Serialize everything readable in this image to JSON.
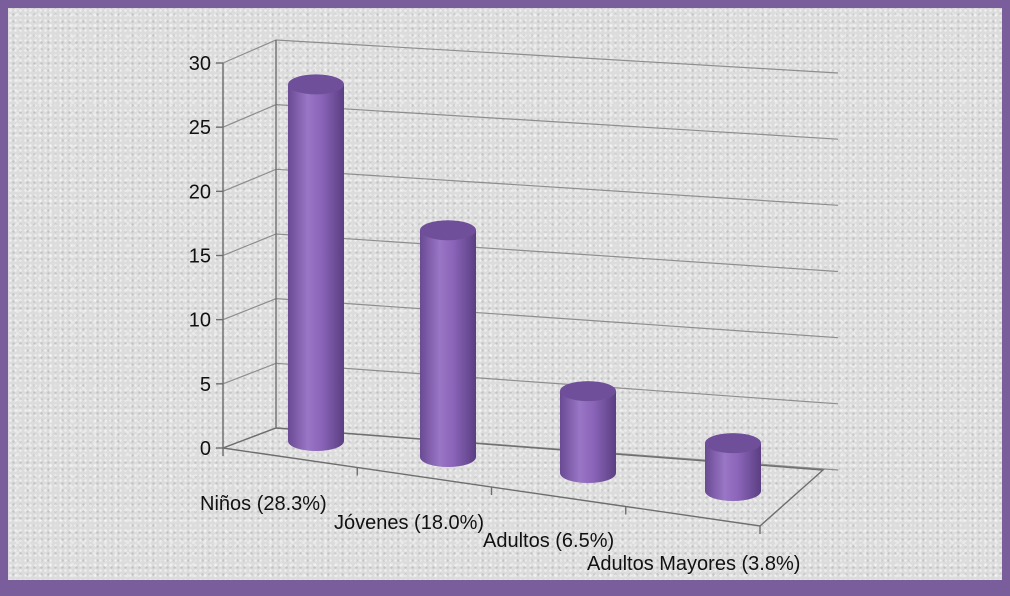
{
  "chart_data": {
    "type": "bar",
    "style": "3d-cylinder",
    "categories": [
      "Niños  (28.3%)",
      "Jóvenes  (18.0%)",
      "Adultos  (6.5%)",
      "Adultos Mayores  (3.8%)"
    ],
    "values": [
      28.3,
      18.0,
      6.5,
      3.8
    ],
    "ylim": [
      0,
      30
    ],
    "yticks": [
      "0",
      "5",
      "10",
      "15",
      "20",
      "25",
      "30"
    ],
    "grid": true,
    "colors": {
      "bar_body": "#8e68b8",
      "bar_top": "#6f4f9a",
      "frame": "#7a5d9b"
    }
  }
}
